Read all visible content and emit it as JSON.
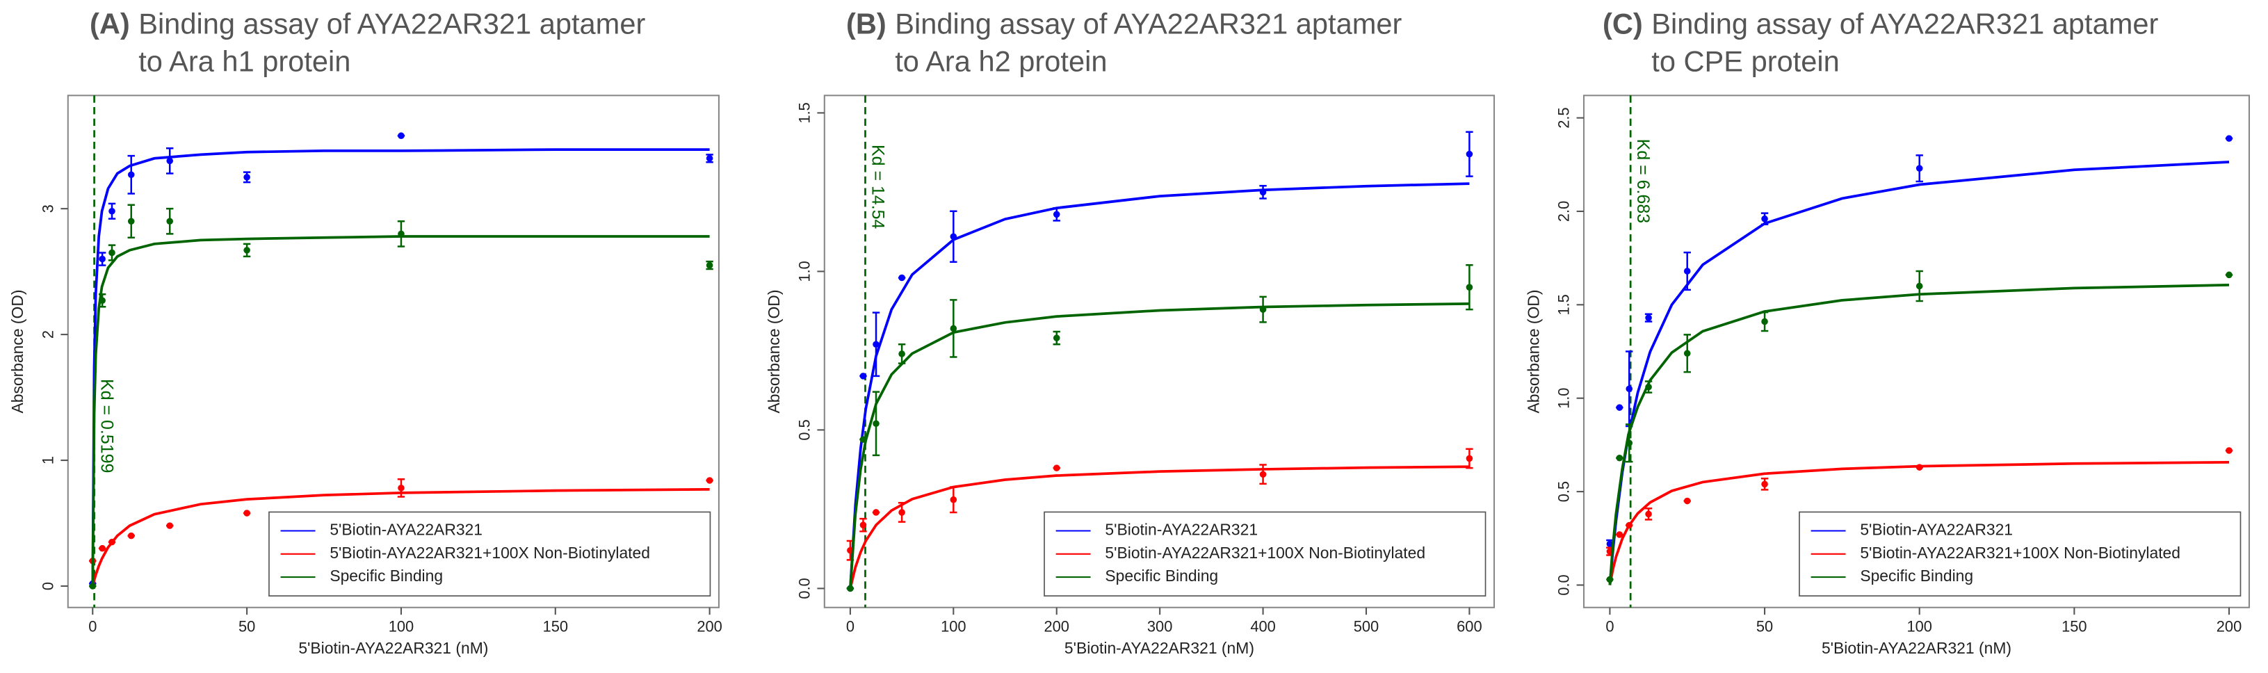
{
  "chart_data": [
    {
      "type": "scatter",
      "panel_label": "(A)",
      "title": [
        "Binding assay of AYA22AR321 aptamer",
        "to Ara h1 protein"
      ],
      "x_label": "5'Biotin-AYA22AR321 (nM)",
      "y_label": "Absorbance (OD)",
      "xlim": [
        -8,
        203
      ],
      "ylim": [
        -0.17,
        3.9
      ],
      "xticks": [
        0,
        50,
        100,
        150,
        200
      ],
      "yticks": [
        0,
        1,
        2,
        3
      ],
      "legend": "lower right",
      "kd": 0.5199,
      "kd_label": "Kd = 0.5199",
      "x": [
        0,
        3.125,
        6.25,
        12.5,
        25,
        50,
        100,
        200
      ],
      "fit_x": [
        0,
        0.5,
        1,
        2,
        3,
        5,
        8,
        12,
        20,
        35,
        50,
        75,
        100,
        150,
        200
      ],
      "series": [
        {
          "name": "5'Biotin-AYA22AR321",
          "color": "#0000ff",
          "values": [
            0.02,
            2.6,
            2.98,
            3.27,
            3.38,
            3.25,
            3.58,
            3.4
          ],
          "errors": [
            0,
            0.05,
            0.06,
            0.15,
            0.1,
            0.04,
            0,
            0.03
          ],
          "fit_values": [
            0,
            1.74,
            2.32,
            2.78,
            2.98,
            3.16,
            3.28,
            3.34,
            3.4,
            3.43,
            3.45,
            3.46,
            3.46,
            3.47,
            3.47
          ]
        },
        {
          "name": "5'Biotin-AYA22AR321+100X Non-Biotinylated",
          "color": "#ff0000",
          "values": [
            0.2,
            0.3,
            0.35,
            0.4,
            0.48,
            0.58,
            0.78,
            0.84
          ],
          "errors": [
            0,
            0,
            0,
            0,
            0,
            0,
            0.07,
            0
          ],
          "fit_values": [
            0,
            0.047,
            0.089,
            0.16,
            0.218,
            0.308,
            0.4,
            0.48,
            0.571,
            0.651,
            0.69,
            0.723,
            0.741,
            0.759,
            0.769
          ]
        },
        {
          "name": "Specific Binding",
          "color": "#006400",
          "values": [
            0,
            2.27,
            2.65,
            2.9,
            2.9,
            2.67,
            2.8,
            2.55
          ],
          "errors": [
            0,
            0.05,
            0.06,
            0.13,
            0.1,
            0.05,
            0.1,
            0.03
          ],
          "fit_values": [
            0,
            1.37,
            1.84,
            2.21,
            2.38,
            2.53,
            2.62,
            2.67,
            2.72,
            2.75,
            2.76,
            2.77,
            2.78,
            2.78,
            2.78
          ]
        }
      ]
    },
    {
      "type": "scatter",
      "panel_label": "(B)",
      "title": [
        "Binding assay of AYA22AR321 aptamer",
        "to Ara h2 protein"
      ],
      "x_label": "5'Biotin-AYA22AR321 (nM)",
      "y_label": "Absorbance (OD)",
      "xlim": [
        -25,
        624
      ],
      "ylim": [
        -0.06,
        1.555
      ],
      "xticks": [
        0,
        100,
        200,
        300,
        400,
        500,
        600
      ],
      "yticks": [
        {
          "value": 0,
          "label": "0.0"
        },
        0.5,
        {
          "value": 1,
          "label": "1.0"
        },
        1.5
      ],
      "legend": "lower right",
      "kd": 14.54,
      "kd_label": "Kd = 14.54",
      "x": [
        0,
        12.5,
        25,
        50,
        100,
        200,
        400,
        600
      ],
      "fit_x": [
        0,
        5,
        10,
        15,
        25,
        40,
        60,
        100,
        150,
        200,
        300,
        400,
        500,
        600
      ],
      "series": [
        {
          "name": "5'Biotin-AYA22AR321",
          "color": "#0000ff",
          "values": [
            0,
            0.67,
            0.77,
            0.98,
            1.11,
            1.18,
            1.25,
            1.37
          ],
          "errors": [
            0,
            0,
            0.1,
            0,
            0.08,
            0.02,
            0.02,
            0.07
          ],
          "fit_values": [
            0,
            0.264,
            0.44,
            0.566,
            0.733,
            0.88,
            0.99,
            1.1,
            1.165,
            1.2,
            1.2375,
            1.257,
            1.269,
            1.277
          ]
        },
        {
          "name": "5'Biotin-AYA22AR321+100X Non-Biotinylated",
          "color": "#ff0000",
          "values": [
            0.12,
            0.2,
            0.24,
            0.24,
            0.28,
            0.38,
            0.36,
            0.41
          ],
          "errors": [
            0.03,
            0.02,
            0,
            0.03,
            0.04,
            0,
            0.03,
            0.03
          ],
          "fit_values": [
            0,
            0.067,
            0.114,
            0.15,
            0.2,
            0.246,
            0.282,
            0.32,
            0.343,
            0.356,
            0.369,
            0.376,
            0.381,
            0.384
          ]
        },
        {
          "name": "Specific Binding",
          "color": "#006400",
          "values": [
            0,
            0.47,
            0.52,
            0.74,
            0.82,
            0.79,
            0.88,
            0.95
          ],
          "errors": [
            0,
            0,
            0.1,
            0.03,
            0.09,
            0.02,
            0.04,
            0.07
          ],
          "fit_values": [
            0,
            0.235,
            0.375,
            0.467,
            0.582,
            0.675,
            0.741,
            0.8075,
            0.839,
            0.858,
            0.877,
            0.888,
            0.894,
            0.898
          ]
        }
      ]
    },
    {
      "type": "scatter",
      "panel_label": "(C)",
      "title": [
        "Binding assay of AYA22AR321 aptamer",
        "to CPE protein"
      ],
      "x_label": "5'Biotin-AYA22AR321 (nM)",
      "y_label": "Absorbance (OD)",
      "xlim": [
        -8.4,
        206.5
      ],
      "ylim": [
        -0.12,
        2.62
      ],
      "xticks": [
        0,
        50,
        100,
        150,
        200
      ],
      "yticks": [
        {
          "value": 0,
          "label": "0.0"
        },
        0.5,
        {
          "value": 1,
          "label": "1.0"
        },
        1.5,
        {
          "value": 2,
          "label": "2.0"
        },
        2.5
      ],
      "legend": "lower right",
      "kd": 6.683,
      "kd_label": "Kd = 6.683",
      "x": [
        0,
        3.125,
        6.25,
        12.5,
        25,
        50,
        100,
        200
      ],
      "fit_x": [
        0,
        1,
        2,
        4,
        6,
        9,
        13,
        20,
        30,
        50,
        75,
        100,
        150,
        200
      ],
      "series": [
        {
          "name": "5'Biotin-AYA22AR321",
          "color": "#0000ff",
          "values": [
            0.22,
            0.95,
            1.05,
            1.43,
            1.68,
            1.96,
            2.23,
            2.39
          ],
          "errors": [
            0.02,
            0,
            0.2,
            0.02,
            0.1,
            0.03,
            0.07,
            0
          ],
          "fit_values": [
            0,
            0.185,
            0.343,
            0.6,
            0.8,
            1.029,
            1.248,
            1.5,
            1.714,
            1.935,
            2.069,
            2.143,
            2.222,
            2.264
          ]
        },
        {
          "name": "5'Biotin-AYA22AR321+100X Non-Biotinylated",
          "color": "#ff0000",
          "values": [
            0.18,
            0.27,
            0.32,
            0.38,
            0.45,
            0.54,
            0.63,
            0.72
          ],
          "errors": [
            0.02,
            0,
            0,
            0.03,
            0,
            0.03,
            0,
            0
          ],
          "fit_values": [
            0,
            0.085,
            0.151,
            0.247,
            0.314,
            0.383,
            0.442,
            0.504,
            0.551,
            0.596,
            0.622,
            0.636,
            0.65,
            0.657
          ]
        },
        {
          "name": "Specific Binding",
          "color": "#006400",
          "values": [
            0.03,
            0.68,
            0.76,
            1.06,
            1.24,
            1.41,
            1.6,
            1.66
          ],
          "errors": [
            0,
            0,
            0.1,
            0.03,
            0.1,
            0.05,
            0.08,
            0
          ],
          "fit_values": [
            0,
            0.216,
            0.382,
            0.621,
            0.806,
            0.953,
            1.096,
            1.244,
            1.358,
            1.464,
            1.524,
            1.556,
            1.589,
            1.606
          ]
        }
      ]
    }
  ]
}
